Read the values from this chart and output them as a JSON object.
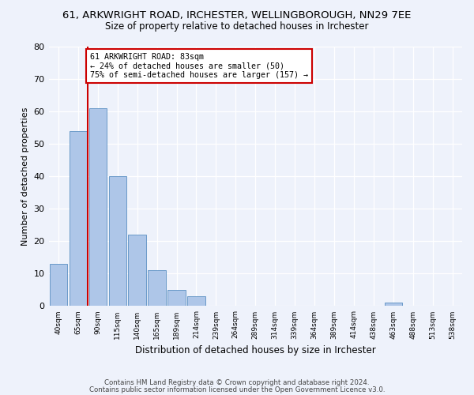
{
  "title": "61, ARKWRIGHT ROAD, IRCHESTER, WELLINGBOROUGH, NN29 7EE",
  "subtitle": "Size of property relative to detached houses in Irchester",
  "xlabel": "Distribution of detached houses by size in Irchester",
  "ylabel": "Number of detached properties",
  "bar_values": [
    13,
    54,
    61,
    40,
    22,
    11,
    5,
    3,
    0,
    0,
    0,
    0,
    0,
    0,
    0,
    0,
    0,
    1,
    0,
    0
  ],
  "bar_labels": [
    "40sqm",
    "65sqm",
    "90sqm",
    "115sqm",
    "140sqm",
    "165sqm",
    "189sqm",
    "214sqm",
    "239sqm",
    "264sqm",
    "289sqm",
    "314sqm",
    "339sqm",
    "364sqm",
    "389sqm",
    "414sqm",
    "438sqm",
    "463sqm",
    "488sqm",
    "513sqm",
    "538sqm"
  ],
  "bar_color": "#aec6e8",
  "bar_edge_color": "#5a8fc2",
  "ylim": [
    0,
    80
  ],
  "yticks": [
    0,
    10,
    20,
    30,
    40,
    50,
    60,
    70,
    80
  ],
  "vline_x": 1.5,
  "annotation_text": "61 ARKWRIGHT ROAD: 83sqm\n← 24% of detached houses are smaller (50)\n75% of semi-detached houses are larger (157) →",
  "annotation_box_color": "#ffffff",
  "annotation_box_edge": "#cc0000",
  "vline_color": "#cc0000",
  "footer_line1": "Contains HM Land Registry data © Crown copyright and database right 2024.",
  "footer_line2": "Contains public sector information licensed under the Open Government Licence v3.0.",
  "background_color": "#eef2fb",
  "plot_background": "#eef2fb"
}
